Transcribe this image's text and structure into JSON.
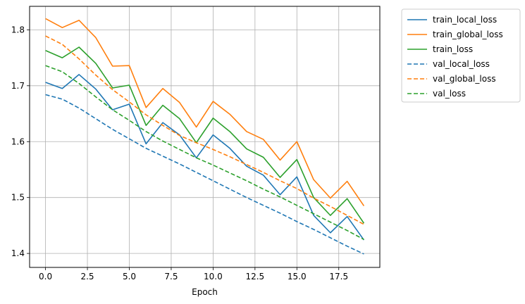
{
  "chart_data": {
    "type": "line",
    "title": "",
    "xlabel": "Epoch",
    "ylabel": "",
    "xlim": [
      -0.95,
      19.95
    ],
    "ylim": [
      1.375,
      1.842
    ],
    "grid": true,
    "legend_position": "outside-top-right",
    "x_ticks": [
      0.0,
      2.5,
      5.0,
      7.5,
      10.0,
      12.5,
      15.0,
      17.5
    ],
    "x_tick_labels": [
      "0.0",
      "2.5",
      "5.0",
      "7.5",
      "10.0",
      "12.5",
      "15.0",
      "17.5"
    ],
    "y_ticks": [
      1.4,
      1.5,
      1.6,
      1.7,
      1.8
    ],
    "y_tick_labels": [
      "1.4",
      "1.5",
      "1.6",
      "1.7",
      "1.8"
    ],
    "x": [
      0,
      1,
      2,
      3,
      4,
      5,
      6,
      7,
      8,
      9,
      10,
      11,
      12,
      13,
      14,
      15,
      16,
      17,
      18,
      19
    ],
    "series": [
      {
        "name": "train_local_loss",
        "color": "#1f77b4",
        "style": "solid",
        "values": [
          1.706,
          1.695,
          1.72,
          1.694,
          1.657,
          1.667,
          1.596,
          1.634,
          1.612,
          1.571,
          1.612,
          1.588,
          1.556,
          1.54,
          1.505,
          1.537,
          1.468,
          1.437,
          1.466,
          1.424
        ]
      },
      {
        "name": "train_global_loss",
        "color": "#ff7f0e",
        "style": "solid",
        "values": [
          1.82,
          1.804,
          1.817,
          1.786,
          1.735,
          1.736,
          1.661,
          1.695,
          1.67,
          1.626,
          1.672,
          1.649,
          1.618,
          1.604,
          1.567,
          1.6,
          1.532,
          1.499,
          1.529,
          1.485
        ]
      },
      {
        "name": "train_loss",
        "color": "#2ca02c",
        "style": "solid",
        "values": [
          1.763,
          1.75,
          1.769,
          1.74,
          1.696,
          1.701,
          1.629,
          1.665,
          1.641,
          1.598,
          1.642,
          1.618,
          1.587,
          1.572,
          1.536,
          1.568,
          1.5,
          1.468,
          1.498,
          1.454
        ]
      },
      {
        "name": "val_local_loss",
        "color": "#1f77b4",
        "style": "dashed",
        "values": [
          1.684,
          1.676,
          1.66,
          1.641,
          1.622,
          1.605,
          1.588,
          1.574,
          1.56,
          1.545,
          1.53,
          1.515,
          1.5,
          1.486,
          1.472,
          1.457,
          1.443,
          1.428,
          1.413,
          1.399
        ]
      },
      {
        "name": "val_global_loss",
        "color": "#ff7f0e",
        "style": "dashed",
        "values": [
          1.789,
          1.774,
          1.748,
          1.719,
          1.693,
          1.671,
          1.648,
          1.629,
          1.611,
          1.598,
          1.586,
          1.573,
          1.559,
          1.545,
          1.53,
          1.516,
          1.499,
          1.484,
          1.468,
          1.452
        ]
      },
      {
        "name": "val_loss",
        "color": "#2ca02c",
        "style": "dashed",
        "values": [
          1.736,
          1.725,
          1.704,
          1.68,
          1.657,
          1.638,
          1.618,
          1.601,
          1.586,
          1.571,
          1.558,
          1.544,
          1.53,
          1.515,
          1.501,
          1.486,
          1.471,
          1.456,
          1.441,
          1.425
        ]
      }
    ]
  }
}
